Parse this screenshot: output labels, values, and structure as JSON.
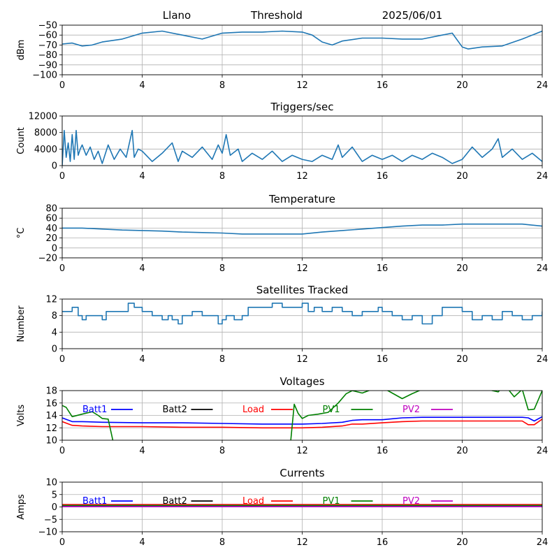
{
  "header": {
    "site": "Llano",
    "mode": "Threshold",
    "date": "2025/06/01"
  },
  "chart_data": [
    {
      "type": "line",
      "title": "",
      "ylabel": "dBm",
      "xlim": [
        0,
        24
      ],
      "ylim": [
        -100,
        -50
      ],
      "xticks": [
        "0",
        "4",
        "8",
        "12",
        "16",
        "20",
        "24"
      ],
      "yticks": [
        "−100",
        "−90",
        "−80",
        "−70",
        "−60",
        "−50"
      ],
      "grid": true,
      "color": "#1f77b4",
      "series": [
        {
          "x": [
            0,
            0.5,
            1,
            1.5,
            2,
            3,
            4,
            5,
            6,
            7,
            8,
            9,
            10,
            11,
            12,
            12.5,
            13,
            13.5,
            14,
            15,
            16,
            17,
            18,
            19,
            19.5,
            20,
            20.3,
            21,
            22,
            23,
            24
          ],
          "y": [
            -69,
            -68,
            -71,
            -70,
            -67,
            -64,
            -58,
            -56,
            -60,
            -64,
            -58,
            -57,
            -57,
            -56,
            -57,
            -60,
            -67,
            -70,
            -66,
            -63,
            -63,
            -64,
            -64,
            -60,
            -58,
            -72,
            -74,
            -72,
            -71,
            -64,
            -56
          ]
        }
      ]
    },
    {
      "type": "line",
      "title": "Triggers/sec",
      "ylabel": "Count",
      "xlim": [
        0,
        24
      ],
      "ylim": [
        0,
        12000
      ],
      "xticks": [
        "0",
        "4",
        "8",
        "12",
        "16",
        "20",
        "24"
      ],
      "yticks": [
        "0",
        "4000",
        "8000",
        "12000"
      ],
      "grid": true,
      "color": "#1f77b4",
      "series": [
        {
          "x": [
            0,
            0.1,
            0.2,
            0.3,
            0.4,
            0.5,
            0.6,
            0.7,
            0.8,
            0.9,
            1.0,
            1.2,
            1.4,
            1.6,
            1.8,
            2.0,
            2.3,
            2.6,
            2.9,
            3.2,
            3.5,
            3.6,
            3.8,
            4.0,
            4.5,
            5.0,
            5.5,
            5.8,
            6.0,
            6.5,
            7.0,
            7.5,
            7.8,
            8.0,
            8.2,
            8.4,
            8.8,
            9.0,
            9.5,
            10.0,
            10.5,
            11.0,
            11.5,
            12.0,
            12.5,
            13.0,
            13.5,
            13.8,
            14.0,
            14.5,
            15.0,
            15.5,
            16.0,
            16.5,
            17.0,
            17.5,
            18.0,
            18.5,
            19.0,
            19.5,
            20.0,
            20.5,
            21.0,
            21.5,
            21.8,
            22.0,
            22.5,
            23.0,
            23.5,
            24.0
          ],
          "y": [
            0,
            8500,
            2000,
            5500,
            1000,
            7500,
            1500,
            8500,
            2500,
            4000,
            5000,
            2500,
            4500,
            1500,
            3500,
            500,
            5000,
            1500,
            4000,
            2000,
            8500,
            2000,
            4000,
            3500,
            1000,
            3000,
            5500,
            1000,
            3500,
            2000,
            4500,
            1500,
            5000,
            3000,
            7500,
            2500,
            4000,
            1000,
            3000,
            1500,
            3500,
            1000,
            2500,
            1500,
            1000,
            2500,
            1500,
            5000,
            2000,
            4500,
            1000,
            2500,
            1500,
            2500,
            1000,
            2500,
            1500,
            3000,
            2000,
            500,
            1500,
            4500,
            2000,
            4000,
            6500,
            2000,
            4000,
            1500,
            3000,
            1000
          ]
        }
      ]
    },
    {
      "type": "line",
      "title": "Temperature",
      "ylabel": "°C",
      "xlim": [
        0,
        24
      ],
      "ylim": [
        -20,
        80
      ],
      "xticks": [
        "0",
        "4",
        "8",
        "12",
        "16",
        "20",
        "24"
      ],
      "yticks": [
        "−20",
        "0",
        "20",
        "40",
        "60",
        "80"
      ],
      "grid": true,
      "color": "#1f77b4",
      "series": [
        {
          "x": [
            0,
            1,
            2,
            3,
            4,
            5,
            6,
            7,
            8,
            9,
            10,
            11,
            12,
            13,
            14,
            15,
            16,
            17,
            18,
            19,
            20,
            21,
            22,
            23,
            24
          ],
          "y": [
            40,
            40,
            38,
            36,
            35,
            34,
            32,
            31,
            30,
            28,
            28,
            28,
            28,
            32,
            35,
            38,
            41,
            44,
            46,
            46,
            48,
            48,
            48,
            48,
            44
          ]
        }
      ]
    },
    {
      "type": "line",
      "title": "Satellites Tracked",
      "ylabel": "Number",
      "xlim": [
        0,
        24
      ],
      "ylim": [
        0,
        12
      ],
      "xticks": [
        "0",
        "4",
        "8",
        "12",
        "16",
        "20",
        "24"
      ],
      "yticks": [
        "0",
        "4",
        "8",
        "12"
      ],
      "grid": true,
      "step": true,
      "color": "#1f77b4",
      "series": [
        {
          "x": [
            0,
            0.5,
            0.8,
            1.0,
            1.2,
            2.0,
            2.2,
            3.0,
            3.3,
            3.6,
            4.0,
            4.5,
            5.0,
            5.3,
            5.5,
            5.8,
            6.0,
            6.5,
            7.0,
            7.5,
            7.8,
            8.0,
            8.2,
            8.6,
            9.0,
            9.3,
            10.0,
            10.5,
            11.0,
            11.5,
            12.0,
            12.3,
            12.6,
            13.0,
            13.5,
            14.0,
            14.5,
            15.0,
            15.5,
            15.8,
            16.0,
            16.5,
            17.0,
            17.5,
            18.0,
            18.5,
            19.0,
            19.5,
            20.0,
            20.5,
            21.0,
            21.5,
            22.0,
            22.5,
            23.0,
            23.5,
            23.8,
            24.0
          ],
          "y": [
            9,
            10,
            8,
            7,
            8,
            7,
            9,
            9,
            11,
            10,
            9,
            8,
            7,
            8,
            7,
            6,
            8,
            9,
            8,
            8,
            6,
            7,
            8,
            7,
            8,
            10,
            10,
            11,
            10,
            10,
            11,
            9,
            10,
            9,
            10,
            9,
            8,
            9,
            9,
            10,
            9,
            8,
            7,
            8,
            6,
            8,
            10,
            10,
            9,
            7,
            8,
            7,
            9,
            8,
            7,
            8,
            8,
            9
          ]
        }
      ]
    },
    {
      "type": "line",
      "title": "Voltages",
      "ylabel": "Volts",
      "xlim": [
        0,
        24
      ],
      "ylim": [
        10,
        18
      ],
      "xticks": [
        "0",
        "4",
        "8",
        "12",
        "16",
        "20",
        "24"
      ],
      "yticks": [
        "10",
        "12",
        "14",
        "16",
        "18"
      ],
      "grid": true,
      "legend_position": "top",
      "series": [
        {
          "name": "Batt1",
          "color": "#0000ff",
          "x": [
            0,
            0.5,
            1,
            2,
            4,
            6,
            8,
            10,
            12,
            13,
            14,
            14.5,
            15,
            16,
            17,
            18,
            19,
            20,
            21,
            22,
            23,
            23.3,
            23.6,
            24
          ],
          "y": [
            13.6,
            13.0,
            13.0,
            12.9,
            12.8,
            12.8,
            12.7,
            12.6,
            12.6,
            12.7,
            12.9,
            13.2,
            13.3,
            13.3,
            13.6,
            13.7,
            13.7,
            13.7,
            13.7,
            13.7,
            13.7,
            13.6,
            13.1,
            13.8
          ]
        },
        {
          "name": "Batt2",
          "color": "#000000",
          "x": [],
          "y": []
        },
        {
          "name": "Load",
          "color": "#ff0000",
          "x": [
            0,
            0.5,
            1,
            2,
            4,
            6,
            8,
            10,
            12,
            13,
            14,
            14.5,
            15,
            16,
            17,
            18,
            19,
            20,
            21,
            22,
            23,
            23.3,
            23.6,
            24
          ],
          "y": [
            13.0,
            12.4,
            12.3,
            12.2,
            12.2,
            12.1,
            12.1,
            12.0,
            12.0,
            12.1,
            12.3,
            12.6,
            12.6,
            12.8,
            13.0,
            13.1,
            13.1,
            13.1,
            13.1,
            13.1,
            13.1,
            12.5,
            12.5,
            13.4
          ]
        },
        {
          "name": "PV1",
          "color": "#008000",
          "x": [
            0,
            0.2,
            0.5,
            1.0,
            1.5,
            1.8,
            2.0,
            2.3,
            2.6,
            3.0,
            11.0,
            11.4,
            11.6,
            11.8,
            12.0,
            12.3,
            12.8,
            13.3,
            13.8,
            14.2,
            14.5,
            15.0,
            15.5,
            16.0,
            16.5,
            17.0,
            17.5,
            18.0,
            19.0,
            20.0,
            21.0,
            21.5,
            21.8,
            22.0,
            22.3,
            22.6,
            23.0,
            23.3,
            23.6,
            24.0
          ],
          "y": [
            15.6,
            15.3,
            13.8,
            14.2,
            14.6,
            14.0,
            13.5,
            13.4,
            9.0,
            5.0,
            5.0,
            9.0,
            15.8,
            14.3,
            13.5,
            14.0,
            14.2,
            14.5,
            16.0,
            17.5,
            18.0,
            17.6,
            18.2,
            18.5,
            17.6,
            16.7,
            17.5,
            18.2,
            18.5,
            18.5,
            18.6,
            18.0,
            17.8,
            18.5,
            18.2,
            17.0,
            18.2,
            14.9,
            15.0,
            18.0
          ]
        },
        {
          "name": "PV2",
          "color": "#bf00bf",
          "x": [],
          "y": []
        }
      ]
    },
    {
      "type": "line",
      "title": "Currents",
      "ylabel": "Amps",
      "xlim": [
        0,
        24
      ],
      "ylim": [
        -10,
        10
      ],
      "xticks": [
        "0",
        "4",
        "8",
        "12",
        "16",
        "20",
        "24"
      ],
      "yticks": [
        "−10",
        "−5",
        "0",
        "5",
        "10"
      ],
      "grid": true,
      "legend_position": "top",
      "series": [
        {
          "name": "Batt1",
          "color": "#0000ff",
          "x": [
            0,
            24
          ],
          "y": [
            0.3,
            0.3
          ]
        },
        {
          "name": "Batt2",
          "color": "#000000",
          "x": [],
          "y": []
        },
        {
          "name": "Load",
          "color": "#ff0000",
          "x": [
            0,
            4,
            8,
            12,
            16,
            20,
            24
          ],
          "y": [
            1.0,
            1.0,
            1.0,
            1.0,
            1.0,
            1.0,
            1.0
          ]
        },
        {
          "name": "PV1",
          "color": "#008000",
          "x": [
            0,
            24
          ],
          "y": [
            0.6,
            0.6
          ]
        },
        {
          "name": "PV2",
          "color": "#bf00bf",
          "x": [
            0,
            24
          ],
          "y": [
            0.1,
            0.1
          ]
        }
      ]
    }
  ]
}
